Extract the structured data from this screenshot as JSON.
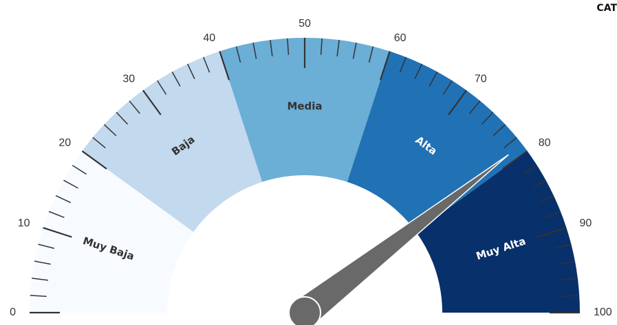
{
  "corner_text": "CAT",
  "chart_data": {
    "type": "gauge",
    "title": "",
    "min": 0,
    "max": 100,
    "value": 79,
    "major_ticks": [
      0,
      10,
      20,
      30,
      40,
      50,
      60,
      70,
      80,
      90,
      100
    ],
    "tick_labels": [
      "0",
      "10",
      "20",
      "30",
      "40",
      "50",
      "60",
      "70",
      "80",
      "90",
      "100"
    ],
    "minor_tick_step": 2,
    "bands": [
      {
        "label": "Muy Baja",
        "from": 0,
        "to": 20,
        "color": "#f7fbff",
        "text_color": "#333333"
      },
      {
        "label": "Baja",
        "from": 20,
        "to": 40,
        "color": "#c2d9ee",
        "text_color": "#333333"
      },
      {
        "label": "Media",
        "from": 40,
        "to": 60,
        "color": "#6baed6",
        "text_color": "#333333"
      },
      {
        "label": "Alta",
        "from": 60,
        "to": 80,
        "color": "#2171b5",
        "text_color": "#ffffff"
      },
      {
        "label": "Muy Alta",
        "from": 80,
        "to": 100,
        "color": "#08306b",
        "text_color": "#ffffff"
      }
    ],
    "needle_color": "#696969",
    "tick_color": "#333333"
  }
}
